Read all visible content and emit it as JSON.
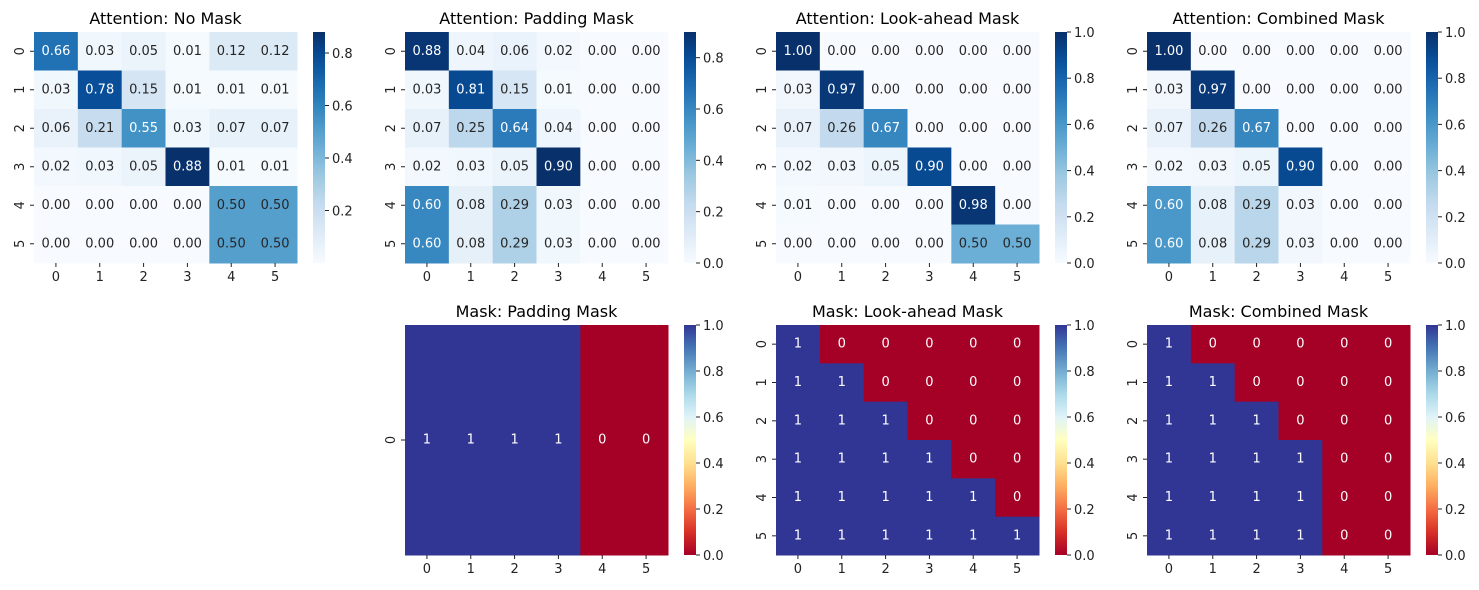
{
  "chart_data": [
    {
      "type": "heatmap",
      "panel": "attention-no-mask",
      "title": "Attention: No Mask",
      "colormap": "Blues",
      "x_ticks": [
        "0",
        "1",
        "2",
        "3",
        "4",
        "5"
      ],
      "y_ticks": [
        "0",
        "1",
        "2",
        "3",
        "4",
        "5"
      ],
      "colorbar": {
        "range": [
          0.0,
          0.88
        ],
        "ticks": [
          "0.2",
          "0.4",
          "0.6",
          "0.8"
        ],
        "tick_values": [
          0.2,
          0.4,
          0.6,
          0.8
        ]
      },
      "annot_format": "2f",
      "values": [
        [
          0.66,
          0.03,
          0.05,
          0.01,
          0.12,
          0.12
        ],
        [
          0.03,
          0.78,
          0.15,
          0.01,
          0.01,
          0.01
        ],
        [
          0.06,
          0.21,
          0.55,
          0.03,
          0.07,
          0.07
        ],
        [
          0.02,
          0.03,
          0.05,
          0.88,
          0.01,
          0.01
        ],
        [
          0.0,
          0.0,
          0.0,
          0.0,
          0.5,
          0.5
        ],
        [
          0.0,
          0.0,
          0.0,
          0.0,
          0.5,
          0.5
        ]
      ]
    },
    {
      "type": "heatmap",
      "panel": "attention-padding-mask",
      "title": "Attention: Padding Mask",
      "colormap": "Blues",
      "x_ticks": [
        "0",
        "1",
        "2",
        "3",
        "4",
        "5"
      ],
      "y_ticks": [
        "0",
        "1",
        "2",
        "3",
        "4",
        "5"
      ],
      "colorbar": {
        "range": [
          0.0,
          0.9
        ],
        "ticks": [
          "0.0",
          "0.2",
          "0.4",
          "0.6",
          "0.8"
        ],
        "tick_values": [
          0.0,
          0.2,
          0.4,
          0.6,
          0.8
        ]
      },
      "annot_format": "2f",
      "values": [
        [
          0.88,
          0.04,
          0.06,
          0.02,
          0.0,
          0.0
        ],
        [
          0.03,
          0.81,
          0.15,
          0.01,
          0.0,
          0.0
        ],
        [
          0.07,
          0.25,
          0.64,
          0.04,
          0.0,
          0.0
        ],
        [
          0.02,
          0.03,
          0.05,
          0.9,
          0.0,
          0.0
        ],
        [
          0.6,
          0.08,
          0.29,
          0.03,
          0.0,
          0.0
        ],
        [
          0.6,
          0.08,
          0.29,
          0.03,
          0.0,
          0.0
        ]
      ]
    },
    {
      "type": "heatmap",
      "panel": "attention-lookahead-mask",
      "title": "Attention: Look-ahead Mask",
      "colormap": "Blues",
      "x_ticks": [
        "0",
        "1",
        "2",
        "3",
        "4",
        "5"
      ],
      "y_ticks": [
        "0",
        "1",
        "2",
        "3",
        "4",
        "5"
      ],
      "colorbar": {
        "range": [
          0.0,
          1.0
        ],
        "ticks": [
          "0.0",
          "0.2",
          "0.4",
          "0.6",
          "0.8",
          "1.0"
        ],
        "tick_values": [
          0.0,
          0.2,
          0.4,
          0.6,
          0.8,
          1.0
        ]
      },
      "annot_format": "2f",
      "values": [
        [
          1.0,
          0.0,
          0.0,
          0.0,
          0.0,
          0.0
        ],
        [
          0.03,
          0.97,
          0.0,
          0.0,
          0.0,
          0.0
        ],
        [
          0.07,
          0.26,
          0.67,
          0.0,
          0.0,
          0.0
        ],
        [
          0.02,
          0.03,
          0.05,
          0.9,
          0.0,
          0.0
        ],
        [
          0.01,
          0.0,
          0.0,
          0.0,
          0.98,
          0.0
        ],
        [
          0.0,
          0.0,
          0.0,
          0.0,
          0.5,
          0.5
        ]
      ]
    },
    {
      "type": "heatmap",
      "panel": "attention-combined-mask",
      "title": "Attention: Combined Mask",
      "colormap": "Blues",
      "x_ticks": [
        "0",
        "1",
        "2",
        "3",
        "4",
        "5"
      ],
      "y_ticks": [
        "0",
        "1",
        "2",
        "3",
        "4",
        "5"
      ],
      "colorbar": {
        "range": [
          0.0,
          1.0
        ],
        "ticks": [
          "0.0",
          "0.2",
          "0.4",
          "0.6",
          "0.8",
          "1.0"
        ],
        "tick_values": [
          0.0,
          0.2,
          0.4,
          0.6,
          0.8,
          1.0
        ]
      },
      "annot_format": "2f",
      "values": [
        [
          1.0,
          0.0,
          0.0,
          0.0,
          0.0,
          0.0
        ],
        [
          0.03,
          0.97,
          0.0,
          0.0,
          0.0,
          0.0
        ],
        [
          0.07,
          0.26,
          0.67,
          0.0,
          0.0,
          0.0
        ],
        [
          0.02,
          0.03,
          0.05,
          0.9,
          0.0,
          0.0
        ],
        [
          0.6,
          0.08,
          0.29,
          0.03,
          0.0,
          0.0
        ],
        [
          0.6,
          0.08,
          0.29,
          0.03,
          0.0,
          0.0
        ]
      ]
    },
    {
      "type": "heatmap",
      "panel": "mask-padding-mask",
      "title": "Mask: Padding Mask",
      "colormap": "RdYlBu",
      "x_ticks": [
        "0",
        "1",
        "2",
        "3",
        "4",
        "5"
      ],
      "y_ticks": [
        "0"
      ],
      "colorbar": {
        "range": [
          0.0,
          1.0
        ],
        "ticks": [
          "0.0",
          "0.2",
          "0.4",
          "0.6",
          "0.8",
          "1.0"
        ],
        "tick_values": [
          0.0,
          0.2,
          0.4,
          0.6,
          0.8,
          1.0
        ]
      },
      "annot_format": "d",
      "values": [
        [
          1,
          1,
          1,
          1,
          0,
          0
        ]
      ]
    },
    {
      "type": "heatmap",
      "panel": "mask-lookahead-mask",
      "title": "Mask: Look-ahead Mask",
      "colormap": "RdYlBu",
      "x_ticks": [
        "0",
        "1",
        "2",
        "3",
        "4",
        "5"
      ],
      "y_ticks": [
        "0",
        "1",
        "2",
        "3",
        "4",
        "5"
      ],
      "colorbar": {
        "range": [
          0.0,
          1.0
        ],
        "ticks": [
          "0.0",
          "0.2",
          "0.4",
          "0.6",
          "0.8",
          "1.0"
        ],
        "tick_values": [
          0.0,
          0.2,
          0.4,
          0.6,
          0.8,
          1.0
        ]
      },
      "annot_format": "d",
      "values": [
        [
          1,
          0,
          0,
          0,
          0,
          0
        ],
        [
          1,
          1,
          0,
          0,
          0,
          0
        ],
        [
          1,
          1,
          1,
          0,
          0,
          0
        ],
        [
          1,
          1,
          1,
          1,
          0,
          0
        ],
        [
          1,
          1,
          1,
          1,
          1,
          0
        ],
        [
          1,
          1,
          1,
          1,
          1,
          1
        ]
      ]
    },
    {
      "type": "heatmap",
      "panel": "mask-combined-mask",
      "title": "Mask: Combined Mask",
      "colormap": "RdYlBu",
      "x_ticks": [
        "0",
        "1",
        "2",
        "3",
        "4",
        "5"
      ],
      "y_ticks": [
        "0",
        "1",
        "2",
        "3",
        "4",
        "5"
      ],
      "colorbar": {
        "range": [
          0.0,
          1.0
        ],
        "ticks": [
          "0.0",
          "0.2",
          "0.4",
          "0.6",
          "0.8",
          "1.0"
        ],
        "tick_values": [
          0.0,
          0.2,
          0.4,
          0.6,
          0.8,
          1.0
        ]
      },
      "annot_format": "d",
      "values": [
        [
          1,
          0,
          0,
          0,
          0,
          0
        ],
        [
          1,
          1,
          0,
          0,
          0,
          0
        ],
        [
          1,
          1,
          1,
          0,
          0,
          0
        ],
        [
          1,
          1,
          1,
          1,
          0,
          0
        ],
        [
          1,
          1,
          1,
          1,
          0,
          0
        ],
        [
          1,
          1,
          1,
          1,
          0,
          0
        ]
      ]
    }
  ],
  "colormaps": {
    "Blues": [
      "#f7fbff",
      "#deebf7",
      "#c6dbef",
      "#9ecae1",
      "#6baed6",
      "#4292c6",
      "#2171b5",
      "#08519c",
      "#08306b"
    ],
    "RdYlBu": [
      "#a50026",
      "#d73027",
      "#f46d43",
      "#fdae61",
      "#fee090",
      "#ffffbf",
      "#e0f3f8",
      "#abd9e9",
      "#74add1",
      "#4575b4",
      "#313695"
    ]
  }
}
